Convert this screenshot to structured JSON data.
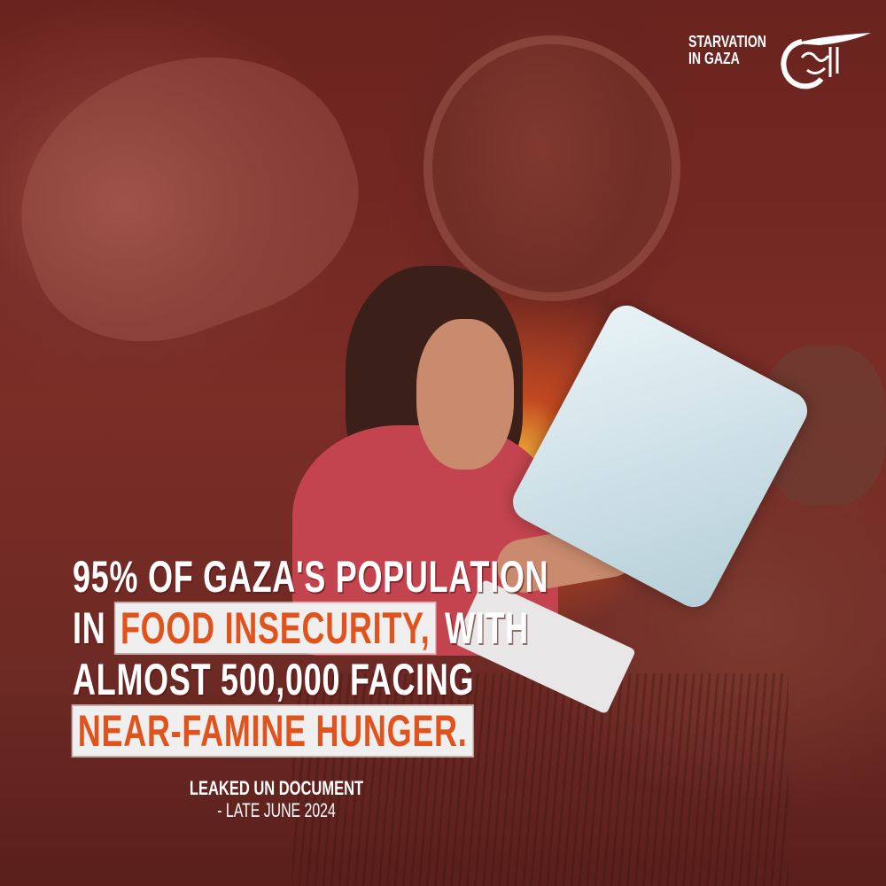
{
  "brand": {
    "series_title_line1": "STARVATION",
    "series_title_line2": "IN GAZA",
    "logo": "Al Mayadeen calligraphic logo"
  },
  "headline": {
    "line1": "95% OF GAZA'S POPULATION",
    "line2_prefix": "IN ",
    "line2_highlight": "FOOD INSECURITY,",
    "line2_suffix": " WITH",
    "line3": "ALMOST 500,000 FACING",
    "line4_highlight": "NEAR-FAMINE HUNGER."
  },
  "source": {
    "name": "LEAKED UN DOCUMENT",
    "date": "- LATE JUNE 2024"
  },
  "colors": {
    "background": "#6e2a24",
    "highlight_text": "#e0531c",
    "highlight_bg": "#efefef",
    "text": "#ffffff"
  }
}
